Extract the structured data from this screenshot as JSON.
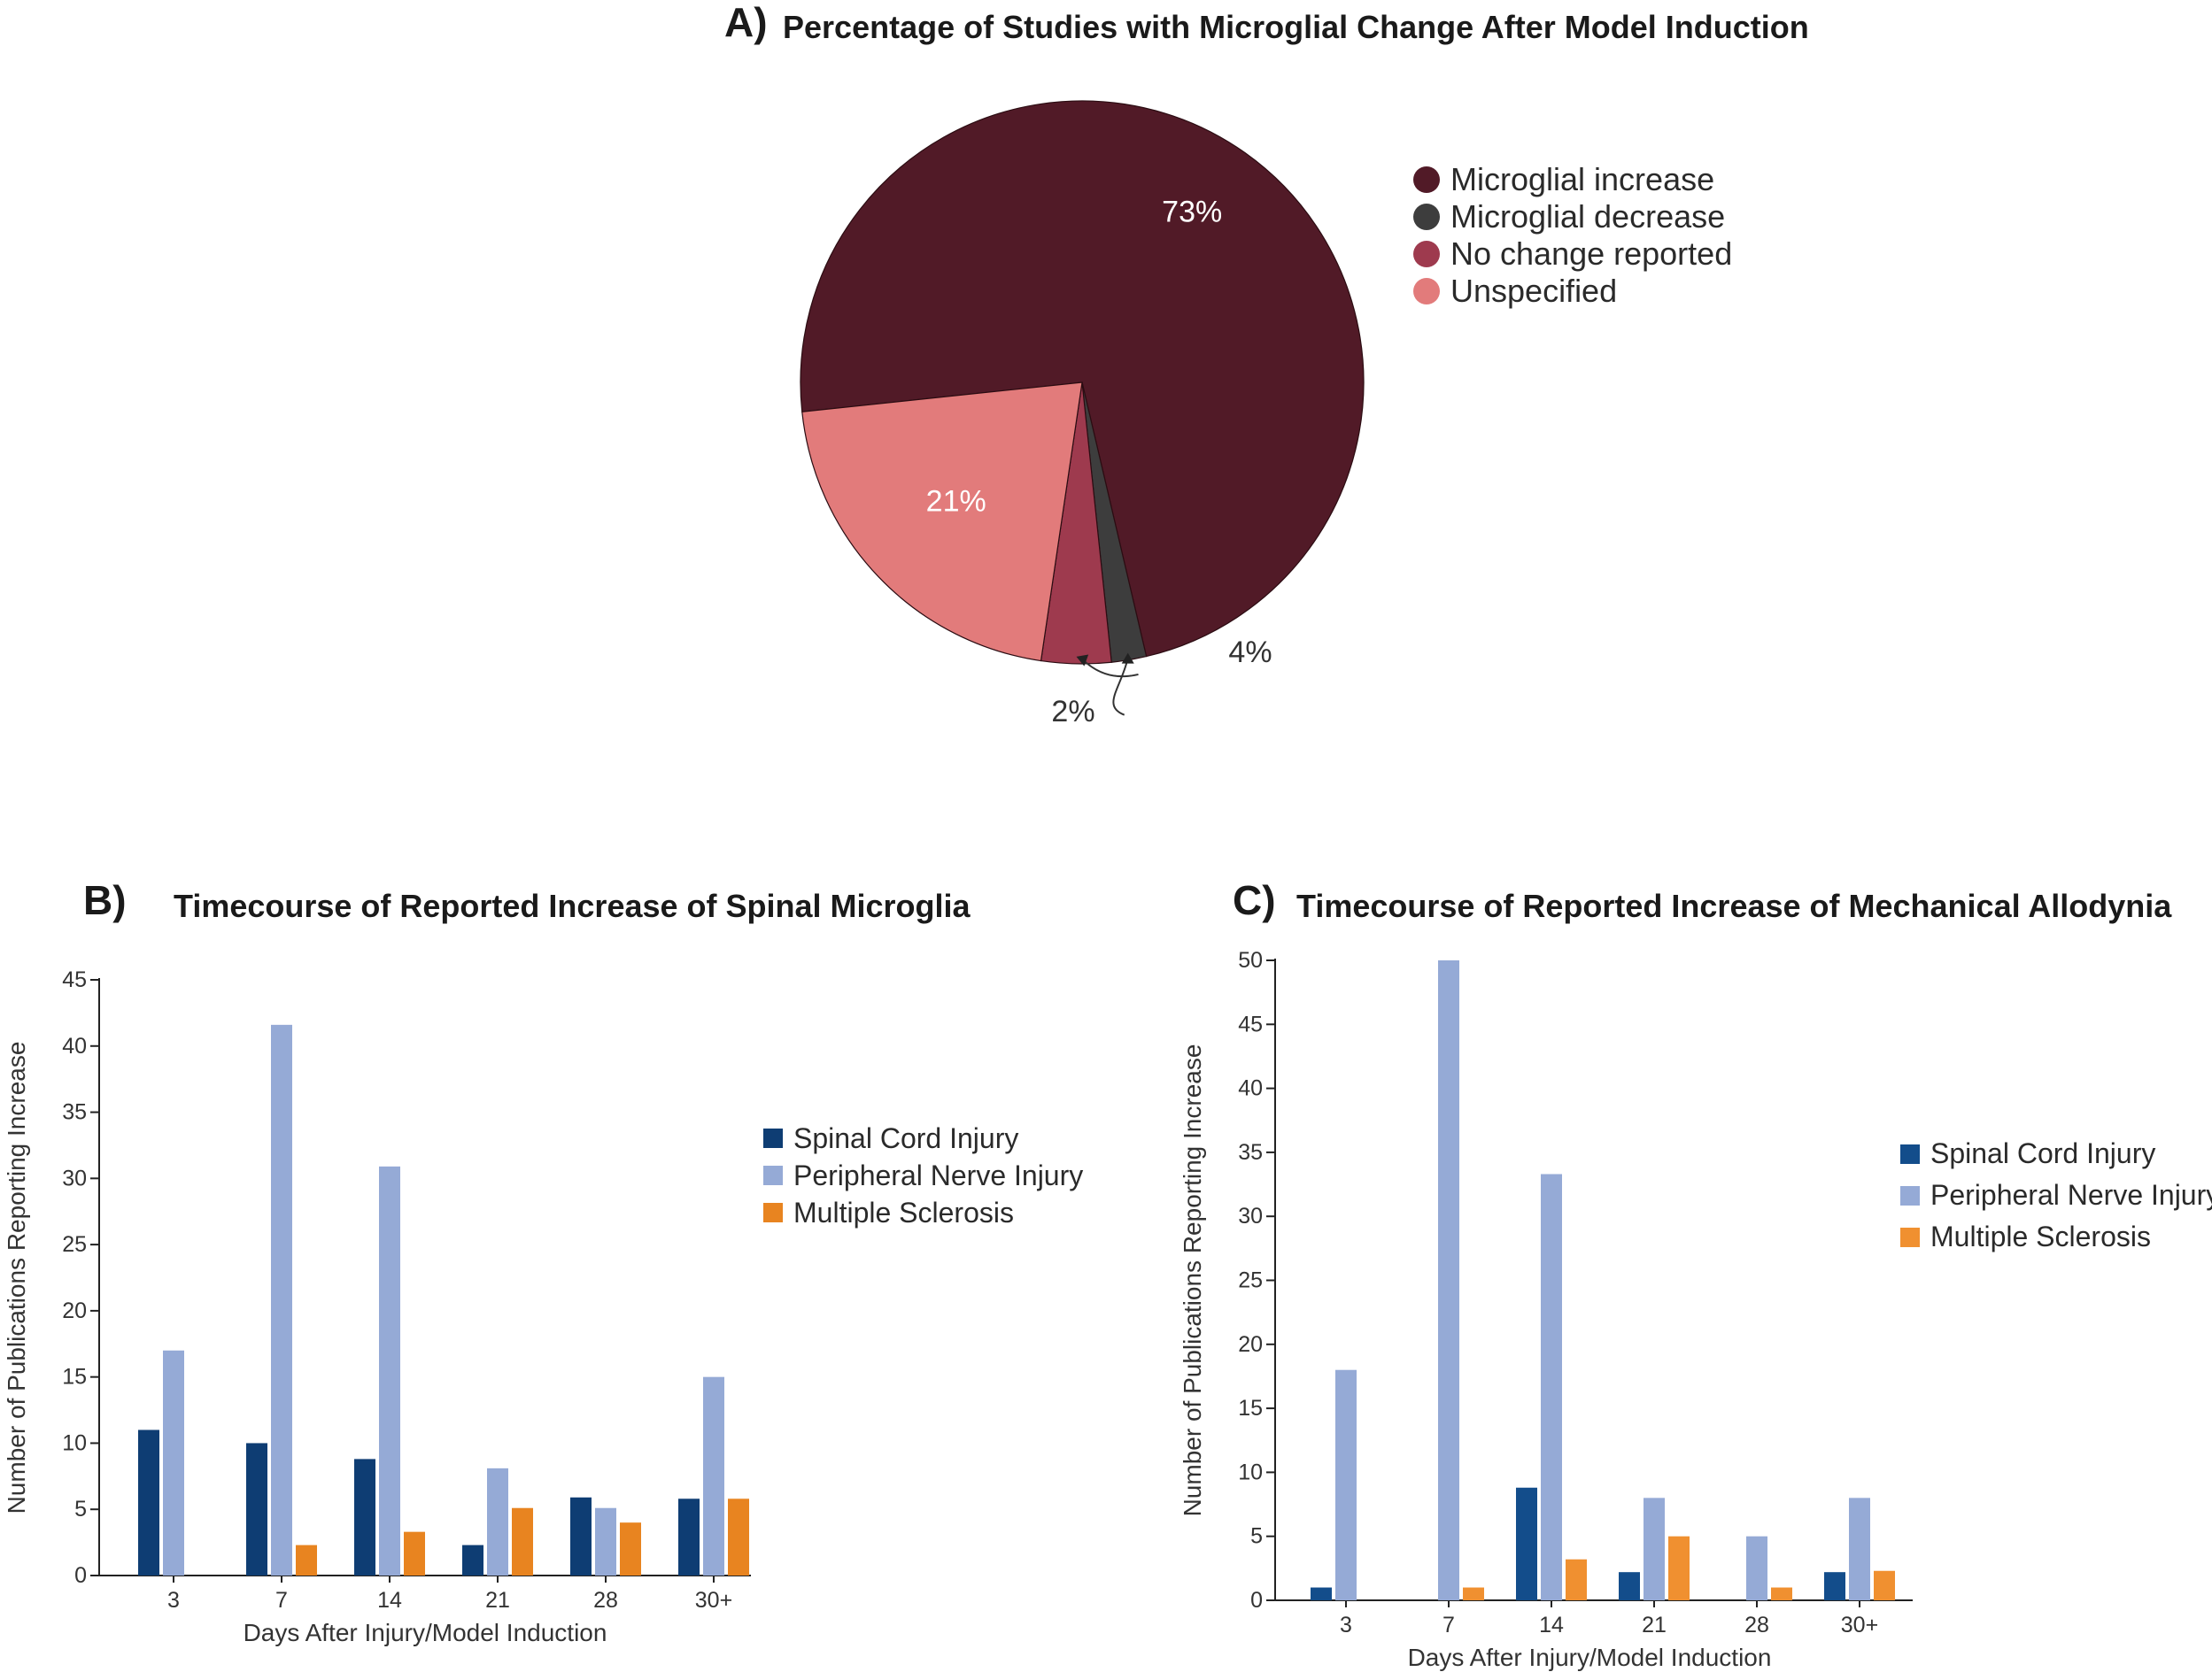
{
  "panel_a": {
    "letter": "A)",
    "chart_data": {
      "type": "pie",
      "title": "Percentage of Studies with Microglial Change After Model Induction",
      "slices": [
        {
          "label": "Microglial increase",
          "value": 73,
          "display": "73%",
          "color": "#511a27"
        },
        {
          "label": "Microglial decrease",
          "value": 2,
          "display": "2%",
          "color": "#3d3d3d"
        },
        {
          "label": "No change reported",
          "value": 4,
          "display": "4%",
          "color": "#9e3a4e"
        },
        {
          "label": "Unspecified",
          "value": 21,
          "display": "21%",
          "color": "#e27b7b"
        }
      ],
      "legend_position": "right"
    }
  },
  "panel_b": {
    "letter": "B)",
    "chart_data": {
      "type": "bar",
      "title": "Timecourse of Reported Increase of Spinal Microglia",
      "xlabel": "Days After Injury/Model Induction",
      "ylabel": "Number of Publications Reporting Increase",
      "categories": [
        "3",
        "7",
        "14",
        "21",
        "28",
        "30+"
      ],
      "ylim": [
        0,
        45
      ],
      "yticks": [
        0,
        5,
        10,
        15,
        20,
        25,
        30,
        35,
        40,
        45
      ],
      "series": [
        {
          "name": "Spinal Cord Injury",
          "color": "#0e3d73",
          "values": [
            11,
            10,
            8.8,
            2.3,
            5.9,
            5.8
          ]
        },
        {
          "name": "Peripheral Nerve Injury",
          "color": "#95aad6",
          "values": [
            17,
            41.6,
            30.9,
            8.1,
            5.1,
            15
          ]
        },
        {
          "name": "Multiple Sclerosis",
          "color": "#e88420",
          "values": [
            0,
            2.3,
            3.3,
            5.1,
            4,
            5.8
          ]
        }
      ],
      "legend_position": "right"
    }
  },
  "panel_c": {
    "letter": "C)",
    "chart_data": {
      "type": "bar",
      "title": "Timecourse of Reported Increase of Mechanical Allodynia",
      "xlabel": "Days After Injury/Model Induction",
      "ylabel": "Number of Publications Reporting Increase",
      "categories": [
        "3",
        "7",
        "14",
        "21",
        "28",
        "30+"
      ],
      "ylim": [
        0,
        50
      ],
      "yticks": [
        0,
        5,
        10,
        15,
        20,
        25,
        30,
        35,
        40,
        45,
        50
      ],
      "series": [
        {
          "name": "Spinal Cord Injury",
          "color": "#134d8b",
          "values": [
            1,
            0,
            8.8,
            2.2,
            0,
            2.2
          ]
        },
        {
          "name": "Peripheral Nerve Injury",
          "color": "#95aad6",
          "values": [
            18,
            50,
            33.3,
            8,
            5,
            8
          ]
        },
        {
          "name": "Multiple Sclerosis",
          "color": "#f09030",
          "values": [
            0,
            1,
            3.2,
            5,
            1,
            2.3
          ]
        }
      ],
      "legend_position": "right"
    }
  }
}
